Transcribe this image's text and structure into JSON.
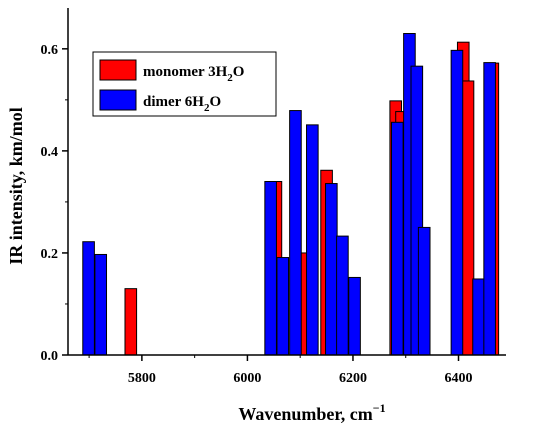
{
  "chart_data": {
    "type": "bar",
    "title": "",
    "xlabel": "Wavenumber, cm",
    "xlabel_sup": "−1",
    "ylabel": "IR intensity, km/mol",
    "xlim": [
      5660,
      6490
    ],
    "ylim": [
      0.0,
      0.68
    ],
    "xticks": [
      {
        "value": 5800,
        "label": "5800"
      },
      {
        "value": 6000,
        "label": "6000"
      },
      {
        "value": 6200,
        "label": "6200"
      },
      {
        "value": 6400,
        "label": "6400"
      }
    ],
    "yticks": [
      {
        "value": 0.0,
        "label": "0.0"
      },
      {
        "value": 0.2,
        "label": "0.2"
      },
      {
        "value": 0.4,
        "label": "0.4"
      },
      {
        "value": 0.6,
        "label": "0.6"
      }
    ],
    "bar_width": 22,
    "grid": false,
    "legend_position": "top-left",
    "series": [
      {
        "name": "monomer 3H",
        "name_sub": "2",
        "name_tail": "O",
        "color": "#ff0000",
        "points": [
          {
            "x": 5779,
            "y": 0.13
          },
          {
            "x": 6054,
            "y": 0.34
          },
          {
            "x": 6110,
            "y": 0.2
          },
          {
            "x": 6150,
            "y": 0.362
          },
          {
            "x": 6281,
            "y": 0.498
          },
          {
            "x": 6292,
            "y": 0.477
          },
          {
            "x": 6409,
            "y": 0.613
          },
          {
            "x": 6418,
            "y": 0.537
          },
          {
            "x": 6465,
            "y": 0.572
          }
        ]
      },
      {
        "name": "dimer 6H",
        "name_sub": "2",
        "name_tail": "O",
        "color": "#0000ff",
        "points": [
          {
            "x": 5699,
            "y": 0.222
          },
          {
            "x": 5722,
            "y": 0.197
          },
          {
            "x": 6044,
            "y": 0.34
          },
          {
            "x": 6067,
            "y": 0.191
          },
          {
            "x": 6091,
            "y": 0.479
          },
          {
            "x": 6123,
            "y": 0.451
          },
          {
            "x": 6159,
            "y": 0.336
          },
          {
            "x": 6180,
            "y": 0.233
          },
          {
            "x": 6203,
            "y": 0.152
          },
          {
            "x": 6284,
            "y": 0.456
          },
          {
            "x": 6307,
            "y": 0.63
          },
          {
            "x": 6321,
            "y": 0.566
          },
          {
            "x": 6335,
            "y": 0.25
          },
          {
            "x": 6397,
            "y": 0.597
          },
          {
            "x": 6438,
            "y": 0.149
          },
          {
            "x": 6459,
            "y": 0.573
          }
        ]
      }
    ]
  }
}
